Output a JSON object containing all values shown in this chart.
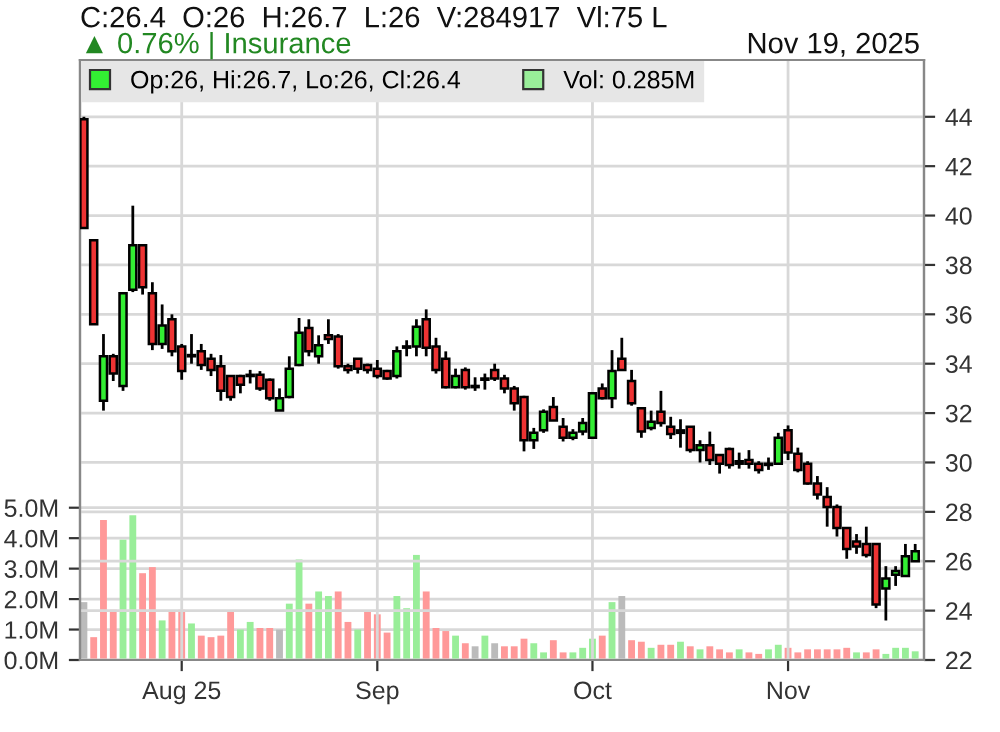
{
  "chart_data": [
    {
      "type": "candlestick",
      "title": "C:26.4  O:26  H:26.7  L:26  V:284917  Vl:75 L",
      "subtitle": "▲ 0.76% | Insurance",
      "annotations": [
        "Nov 19, 2025"
      ],
      "categories": [
        null,
        null,
        null,
        null,
        null,
        null,
        null,
        null,
        null,
        null,
        "Aug 25",
        null,
        null,
        null,
        null,
        null,
        null,
        null,
        null,
        null,
        null,
        null,
        null,
        null,
        null,
        null,
        null,
        null,
        null,
        null,
        "Sep",
        null,
        null,
        null,
        null,
        null,
        null,
        null,
        null,
        null,
        null,
        null,
        null,
        null,
        null,
        null,
        null,
        null,
        null,
        null,
        null,
        null,
        "Oct",
        null,
        null,
        null,
        null,
        null,
        null,
        null,
        null,
        null,
        null,
        null,
        null,
        null,
        null,
        null,
        null,
        null,
        null,
        null,
        "Nov",
        null,
        null,
        null,
        null,
        null,
        null,
        null,
        null,
        null,
        null,
        null,
        null,
        null
      ],
      "series": [
        {
          "name": "Op:26, Hi:26.7, Lo:26, Cl:26.4",
          "color": "#33ee33",
          "ohlc": [
            [
              43.9,
              44,
              39.5,
              39.5
            ],
            [
              39,
              39,
              35.6,
              35.6
            ],
            [
              32.5,
              35.2,
              32.1,
              34.3
            ],
            [
              34.3,
              34.4,
              33.3,
              33.6
            ],
            [
              33.1,
              36.9,
              32.9,
              36.85
            ],
            [
              37,
              40.4,
              36.9,
              38.8
            ],
            [
              38.8,
              38.8,
              36.8,
              37.1
            ],
            [
              36.85,
              37.3,
              34.55,
              34.8
            ],
            [
              34.8,
              36.4,
              34.6,
              35.55
            ],
            [
              35.8,
              36,
              34.3,
              34.5
            ],
            [
              34.7,
              34.8,
              33.35,
              33.7
            ],
            [
              34.35,
              35.2,
              34,
              34.3
            ],
            [
              34.5,
              34.8,
              33.75,
              33.95
            ],
            [
              34.2,
              34.4,
              33.5,
              33.75
            ],
            [
              33.9,
              34.35,
              32.5,
              32.9
            ],
            [
              33.5,
              33.5,
              32.5,
              32.65
            ],
            [
              33.5,
              33.55,
              32.8,
              33.15
            ],
            [
              33.55,
              33.75,
              33.2,
              33.5
            ],
            [
              33.55,
              33.7,
              32.9,
              33
            ],
            [
              33.35,
              33.4,
              32.5,
              32.6
            ],
            [
              32.1,
              33,
              32.1,
              32.6
            ],
            [
              32.65,
              34.3,
              32.6,
              33.8
            ],
            [
              33.95,
              35.85,
              33.9,
              35.25
            ],
            [
              35.45,
              35.8,
              34.3,
              34.5
            ],
            [
              34.3,
              35.15,
              34,
              34.75
            ],
            [
              35.15,
              35.8,
              34.8,
              35
            ],
            [
              35.1,
              35.2,
              33.8,
              33.9
            ],
            [
              33.9,
              34,
              33.6,
              33.75
            ],
            [
              34.2,
              34.2,
              33.6,
              33.8
            ],
            [
              33.95,
              34,
              33.6,
              33.75
            ],
            [
              33.8,
              34.15,
              33.4,
              33.5
            ],
            [
              33.7,
              33.75,
              33.35,
              33.4
            ],
            [
              33.5,
              34.7,
              33.4,
              34.5
            ],
            [
              34.65,
              34.95,
              34.3,
              34.7
            ],
            [
              34.7,
              35.8,
              34.3,
              35.5
            ],
            [
              35.8,
              36.2,
              34.3,
              34.65
            ],
            [
              34.7,
              35.05,
              33.6,
              33.75
            ],
            [
              34.2,
              34.5,
              33,
              33.05
            ],
            [
              33.05,
              33.8,
              33,
              33.5
            ],
            [
              33.75,
              33.85,
              32.95,
              33.05
            ],
            [
              33.1,
              33.45,
              32.9,
              33.05
            ],
            [
              33.35,
              33.6,
              32.95,
              33.4
            ],
            [
              33.75,
              34,
              33.3,
              33.4
            ],
            [
              33.4,
              33.55,
              32.8,
              33
            ],
            [
              33,
              33.1,
              32.1,
              32.4
            ],
            [
              32.65,
              32.7,
              30.45,
              30.9
            ],
            [
              30.9,
              31.4,
              30.55,
              31.2
            ],
            [
              31.3,
              32.15,
              31.2,
              32.05
            ],
            [
              32.25,
              32.65,
              31.7,
              31.7
            ],
            [
              31.45,
              31.8,
              30.85,
              31
            ],
            [
              31,
              31.35,
              30.9,
              31.2
            ],
            [
              31.25,
              31.8,
              31.1,
              31.6
            ],
            [
              31,
              32.8,
              31,
              32.8
            ],
            [
              33,
              33.2,
              32.55,
              32.6
            ],
            [
              32.6,
              34.55,
              32.2,
              33.7
            ],
            [
              34.2,
              35.05,
              33.75,
              33.75
            ],
            [
              33.3,
              33.75,
              32.3,
              32.4
            ],
            [
              32.2,
              32.2,
              31,
              31.25
            ],
            [
              31.4,
              32.1,
              31.3,
              31.65
            ],
            [
              32.05,
              32.9,
              31.45,
              31.6
            ],
            [
              31.45,
              31.85,
              30.95,
              31.15
            ],
            [
              31.2,
              31.75,
              30.6,
              31.3
            ],
            [
              31.45,
              31.45,
              30.4,
              30.5
            ],
            [
              30.5,
              30.9,
              30,
              30.7
            ],
            [
              30.7,
              31.25,
              29.9,
              30.1
            ],
            [
              30.3,
              30.3,
              29.55,
              29.95
            ],
            [
              30.55,
              30.6,
              29.75,
              29.9
            ],
            [
              29.95,
              30.4,
              29.75,
              30.05
            ],
            [
              30.1,
              30.5,
              29.75,
              29.95
            ],
            [
              29.95,
              30.05,
              29.55,
              29.7
            ],
            [
              29.9,
              30.2,
              29.7,
              29.95
            ],
            [
              29.95,
              31.2,
              29.9,
              31
            ],
            [
              31.3,
              31.5,
              30.1,
              30.4
            ],
            [
              30.35,
              30.6,
              29.6,
              29.7
            ],
            [
              29.95,
              30.05,
              29.1,
              29.15
            ],
            [
              29.15,
              29.45,
              28.5,
              28.7
            ],
            [
              28.6,
              29,
              27.4,
              28.2
            ],
            [
              28.2,
              28.3,
              27,
              27.35
            ],
            [
              27.35,
              27.35,
              26.1,
              26.5
            ],
            [
              26.8,
              27.1,
              26.3,
              26.6
            ],
            [
              26.7,
              27.4,
              26.15,
              26.25
            ],
            [
              26.7,
              26.7,
              24.1,
              24.25
            ],
            [
              24.9,
              25.8,
              23.6,
              25.3
            ],
            [
              25.45,
              25.8,
              25,
              25.6
            ],
            [
              25.4,
              26.7,
              25.4,
              26.2
            ],
            [
              26,
              26.7,
              26,
              26.4
            ]
          ],
          "colors": [
            "#ee3333",
            "#ee3333",
            "#33ee33",
            "#ee3333",
            "#33ee33",
            "#33ee33",
            "#ee3333",
            "#ee3333",
            "#33ee33",
            "#ee3333",
            "#ee3333",
            "#ee3333",
            "#ee3333",
            "#ee3333",
            "#ee3333",
            "#ee3333",
            "#ee3333",
            "#ee3333",
            "#ee3333",
            "#ee3333",
            "#33ee33",
            "#33ee33",
            "#33ee33",
            "#ee3333",
            "#33ee33",
            "#ee3333",
            "#ee3333",
            "#ee3333",
            "#ee3333",
            "#ee3333",
            "#ee3333",
            "#ee3333",
            "#33ee33",
            "#33ee33",
            "#33ee33",
            "#ee3333",
            "#ee3333",
            "#ee3333",
            "#33ee33",
            "#ee3333",
            "#ee3333",
            "#33ee33",
            "#ee3333",
            "#ee3333",
            "#ee3333",
            "#ee3333",
            "#33ee33",
            "#33ee33",
            "#ee3333",
            "#ee3333",
            "#33ee33",
            "#33ee33",
            "#33ee33",
            "#ee3333",
            "#33ee33",
            "#ee3333",
            "#ee3333",
            "#ee3333",
            "#33ee33",
            "#ee3333",
            "#ee3333",
            "#33ee33",
            "#ee3333",
            "#33ee33",
            "#ee3333",
            "#ee3333",
            "#ee3333",
            "#33ee33",
            "#ee3333",
            "#ee3333",
            "#33ee33",
            "#33ee33",
            "#ee3333",
            "#ee3333",
            "#ee3333",
            "#ee3333",
            "#ee3333",
            "#ee3333",
            "#ee3333",
            "#ee3333",
            "#ee3333",
            "#ee3333",
            "#33ee33",
            "#33ee33",
            "#33ee33",
            "#33ee33"
          ]
        }
      ],
      "ylim": [
        22,
        46.3
      ],
      "yticks": [
        22,
        24,
        26,
        28,
        30,
        32,
        34,
        36,
        38,
        40,
        42,
        44
      ],
      "grid": true,
      "legend": "top left"
    },
    {
      "type": "bar",
      "categories": [
        null,
        null,
        null,
        null,
        null,
        null,
        null,
        null,
        null,
        null,
        null,
        null,
        null,
        null,
        null,
        null,
        null,
        null,
        null,
        null,
        null,
        null,
        null,
        null,
        null,
        null,
        null,
        null,
        null,
        null,
        null,
        null,
        null,
        null,
        null,
        null,
        null,
        null,
        null,
        null,
        null,
        null,
        null,
        null,
        null,
        null,
        null,
        null,
        null,
        null,
        null,
        null,
        null,
        null,
        null,
        null,
        null,
        null,
        null,
        null,
        null,
        null,
        null,
        null,
        null,
        null,
        null,
        null,
        null,
        null,
        null,
        null,
        null,
        null,
        null,
        null,
        null,
        null,
        null,
        null,
        null,
        null,
        null,
        null,
        null,
        null
      ],
      "series": [
        {
          "name": "Vol: 0.285M",
          "color": "#99ee99",
          "values": [
            1.9,
            0.75,
            4.6,
            1.65,
            3.95,
            4.75,
            2.85,
            3.05,
            1.3,
            1.6,
            1.65,
            1.2,
            0.8,
            0.75,
            0.8,
            1.6,
            1.0,
            1.25,
            1.05,
            1.05,
            1.0,
            1.85,
            3.3,
            1.85,
            2.25,
            2.1,
            2.25,
            1.25,
            1.0,
            1.6,
            1.5,
            0.9,
            2.1,
            1.7,
            3.45,
            2.25,
            1.05,
            0.95,
            0.8,
            0.55,
            0.45,
            0.8,
            0.55,
            0.45,
            0.45,
            0.7,
            0.55,
            0.25,
            0.65,
            0.25,
            0.25,
            0.4,
            0.7,
            0.8,
            1.9,
            2.1,
            0.65,
            0.6,
            0.4,
            0.5,
            0.5,
            0.6,
            0.45,
            0.35,
            0.45,
            0.35,
            0.25,
            0.35,
            0.25,
            0.2,
            0.35,
            0.5,
            0.4,
            0.25,
            0.35,
            0.35,
            0.35,
            0.35,
            0.4,
            0.25,
            0.25,
            0.35,
            0.2,
            0.4,
            0.4,
            0.285
          ],
          "colors": [
            "#bbbbbb",
            "#ff9999",
            "#ff9999",
            "#ff9999",
            "#99ee99",
            "#99ee99",
            "#ff9999",
            "#ff9999",
            "#99ee99",
            "#ff9999",
            "#ff9999",
            "#99ee99",
            "#ff9999",
            "#ff9999",
            "#ff9999",
            "#ff9999",
            "#99ee99",
            "#99ee99",
            "#ff9999",
            "#ff9999",
            "#bbbbbb",
            "#99ee99",
            "#99ee99",
            "#ff9999",
            "#99ee99",
            "#99ee99",
            "#ff9999",
            "#ff9999",
            "#99ee99",
            "#ff9999",
            "#ff9999",
            "#ff9999",
            "#99ee99",
            "#99ee99",
            "#99ee99",
            "#ff9999",
            "#ff9999",
            "#ff9999",
            "#99ee99",
            "#ff9999",
            "#bbbbbb",
            "#99ee99",
            "#bbbbbb",
            "#ff9999",
            "#ff9999",
            "#ff9999",
            "#99ee99",
            "#99ee99",
            "#ff9999",
            "#ff9999",
            "#99ee99",
            "#99ee99",
            "#99ee99",
            "#ff9999",
            "#99ee99",
            "#bbbbbb",
            "#ff9999",
            "#ff9999",
            "#99ee99",
            "#ff9999",
            "#ff9999",
            "#99ee99",
            "#ff9999",
            "#99ee99",
            "#ff9999",
            "#ff9999",
            "#ff9999",
            "#99ee99",
            "#ff9999",
            "#ff9999",
            "#99ee99",
            "#99ee99",
            "#ff9999",
            "#ff9999",
            "#ff9999",
            "#ff9999",
            "#ff9999",
            "#ff9999",
            "#ff9999",
            "#99ee99",
            "#ff9999",
            "#ff9999",
            "#99ee99",
            "#99ee99",
            "#99ee99",
            "#99ee99"
          ]
        }
      ],
      "ylim": [
        0,
        19.7
      ],
      "yticks": [
        {
          "value": 0,
          "label": "0.0M"
        },
        {
          "value": 1,
          "label": "1.0M"
        },
        {
          "value": 2,
          "label": "2.0M"
        },
        {
          "value": 3,
          "label": "3.0M"
        },
        {
          "value": 4,
          "label": "4.0M"
        },
        {
          "value": 5,
          "label": "5.0M"
        }
      ],
      "grid": "y"
    }
  ]
}
